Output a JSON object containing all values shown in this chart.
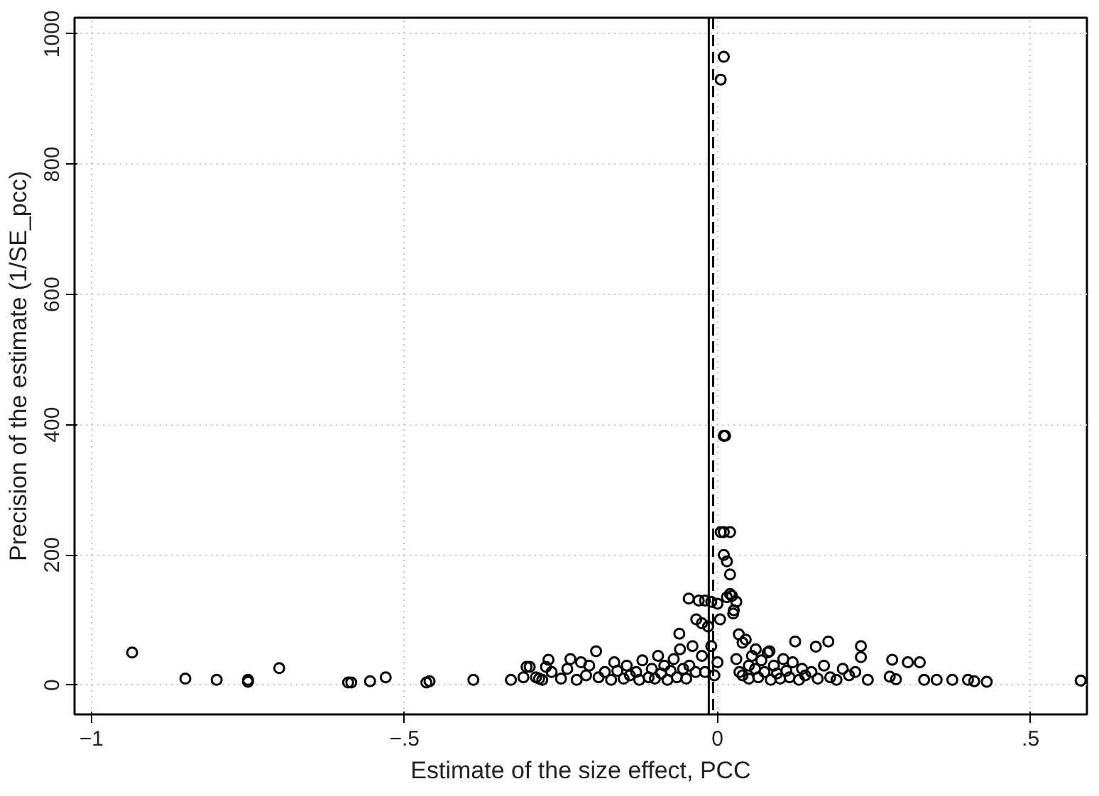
{
  "chart_data": {
    "type": "scatter",
    "xlabel": "Estimate of the size effect, PCC",
    "ylabel": "Precision of the estimate (1/SE_pcc)",
    "xlim": [
      -1.027,
      0.59
    ],
    "ylim": [
      -45,
      1025
    ],
    "xticks": [
      {
        "value": -1,
        "label": "−1"
      },
      {
        "value": -0.5,
        "label": "−.5"
      },
      0,
      {
        "value": 0.5,
        "label": ".5"
      }
    ],
    "yticks": [
      0,
      200,
      400,
      600,
      800,
      1000
    ],
    "grid": true,
    "marker": "circle",
    "ref_lines": [
      {
        "axis": "x",
        "value": -0.014,
        "color": "#000000",
        "line_style": "solid"
      },
      {
        "axis": "x",
        "value": -0.007,
        "color": "#000000",
        "line_style": "dashed"
      }
    ],
    "series": [
      {
        "color": "#000000",
        "x": [
          -0.935,
          -0.85,
          -0.8,
          -0.75,
          -0.75,
          -0.7,
          -0.59,
          -0.585,
          -0.555,
          -0.53,
          -0.465,
          -0.46,
          -0.39,
          -0.33,
          -0.31,
          -0.305,
          -0.3,
          -0.29,
          -0.285,
          -0.28,
          -0.274,
          -0.27,
          -0.265,
          -0.25,
          -0.24,
          -0.235,
          -0.225,
          -0.218,
          -0.21,
          -0.205,
          -0.194,
          -0.19,
          -0.18,
          -0.17,
          -0.165,
          -0.16,
          -0.15,
          -0.145,
          -0.14,
          -0.13,
          -0.125,
          -0.12,
          -0.11,
          -0.105,
          -0.1,
          -0.095,
          -0.09,
          -0.085,
          -0.08,
          -0.075,
          -0.07,
          -0.065,
          -0.061,
          -0.06,
          -0.055,
          -0.05,
          -0.046,
          -0.045,
          -0.04,
          -0.035,
          -0.034,
          -0.03,
          -0.025,
          -0.025,
          -0.02,
          -0.02,
          -0.015,
          -0.01,
          -0.01,
          -0.005,
          0.0,
          0.0,
          0.004,
          0.005,
          0.005,
          0.01,
          0.01,
          0.01,
          0.01,
          0.012,
          0.015,
          0.015,
          0.02,
          0.02,
          0.02,
          0.023,
          0.025,
          0.026,
          0.03,
          0.03,
          0.034,
          0.035,
          0.04,
          0.04,
          0.045,
          0.05,
          0.05,
          0.055,
          0.06,
          0.061,
          0.065,
          0.07,
          0.075,
          0.08,
          0.083,
          0.085,
          0.09,
          0.095,
          0.1,
          0.105,
          0.11,
          0.115,
          0.12,
          0.124,
          0.13,
          0.135,
          0.14,
          0.15,
          0.157,
          0.16,
          0.17,
          0.177,
          0.18,
          0.19,
          0.2,
          0.21,
          0.22,
          0.229,
          0.229,
          0.24,
          0.275,
          0.279,
          0.285,
          0.304,
          0.323,
          0.33,
          0.35,
          0.375,
          0.4,
          0.41,
          0.43,
          0.58
        ],
        "values": [
          50,
          10,
          8,
          5,
          8,
          26,
          4,
          4,
          6,
          12,
          4,
          6,
          8,
          8,
          12,
          28,
          28,
          12,
          10,
          8,
          28,
          39,
          20,
          10,
          25,
          40,
          8,
          35,
          15,
          30,
          52,
          12,
          20,
          8,
          35,
          22,
          10,
          30,
          15,
          20,
          8,
          38,
          12,
          25,
          10,
          45,
          18,
          30,
          8,
          22,
          40,
          12,
          79,
          55,
          25,
          10,
          133,
          30,
          60,
          20,
          101,
          130,
          95,
          45,
          130,
          20,
          90,
          128,
          60,
          15,
          125,
          35,
          101,
          930,
          235,
          965,
          383,
          235,
          200,
          383,
          190,
          135,
          170,
          140,
          235,
          137,
          110,
          115,
          128,
          40,
          78,
          20,
          65,
          15,
          70,
          30,
          10,
          45,
          25,
          55,
          12,
          38,
          20,
          50,
          52,
          8,
          30,
          18,
          10,
          40,
          22,
          12,
          35,
          67,
          8,
          25,
          15,
          20,
          59,
          10,
          30,
          67,
          12,
          8,
          25,
          15,
          20,
          60,
          43,
          8,
          13,
          39,
          9,
          35,
          35,
          8,
          8,
          8,
          8,
          6,
          5,
          7
        ]
      }
    ]
  }
}
